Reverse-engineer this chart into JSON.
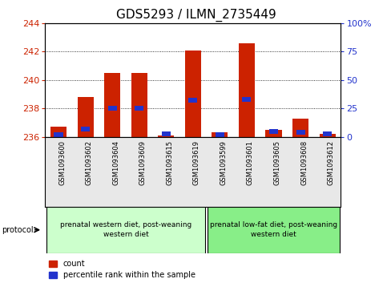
{
  "title": "GDS5293 / ILMN_2735449",
  "samples": [
    "GSM1093600",
    "GSM1093602",
    "GSM1093604",
    "GSM1093609",
    "GSM1093615",
    "GSM1093619",
    "GSM1093599",
    "GSM1093601",
    "GSM1093605",
    "GSM1093608",
    "GSM1093612"
  ],
  "red_values": [
    236.7,
    238.8,
    240.5,
    240.5,
    236.1,
    242.1,
    236.3,
    242.6,
    236.5,
    237.3,
    236.2
  ],
  "blue_values": [
    2.0,
    7.0,
    25.0,
    25.0,
    2.5,
    32.0,
    2.0,
    33.0,
    4.5,
    4.0,
    2.5
  ],
  "y_min": 236,
  "y_max": 244,
  "y_ticks": [
    236,
    238,
    240,
    242,
    244
  ],
  "y2_ticks": [
    0,
    25,
    50,
    75,
    100
  ],
  "y2_tick_labels": [
    "0",
    "25",
    "50",
    "75",
    "100%"
  ],
  "bar_color": "#cc2200",
  "blue_color": "#2233cc",
  "group1_label": "prenatal western diet, post-weaning\nwestern diet",
  "group2_label": "prenatal low-fat diet, post-weaning\nwestern diet",
  "group1_color": "#ccffcc",
  "group2_color": "#88ee88",
  "protocol_label": "protocol",
  "legend_count": "count",
  "legend_percentile": "percentile rank within the sample",
  "red_color": "#cc2200",
  "y2_color": "#2233cc",
  "title_fontsize": 11,
  "tick_fontsize": 8,
  "bar_width": 0.6,
  "bg_color": "#e8e8e8"
}
